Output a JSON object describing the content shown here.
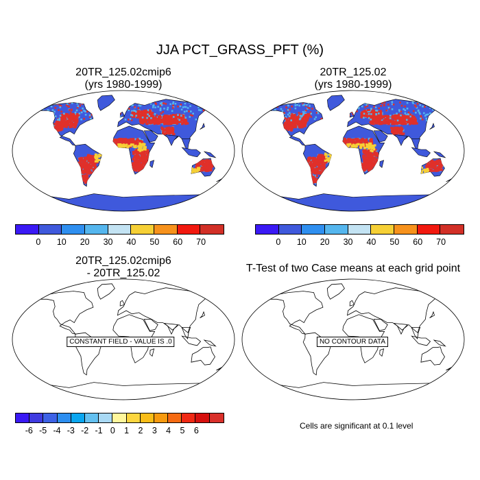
{
  "figure": {
    "title": "JJA PCT_GRASS_PFT (%)"
  },
  "panels": [
    {
      "title": "20TR_125.02cmip6\n(yrs 1980-1999)",
      "kind": "field"
    },
    {
      "title": "20TR_125.02\n(yrs 1980-1999)",
      "kind": "field"
    },
    {
      "title": "20TR_125.02cmip6\n- 20TR_125.02",
      "kind": "empty",
      "message": "CONSTANT FIELD - VALUE IS .0"
    },
    {
      "title": "T-Test of two Case means at each grid point",
      "kind": "empty",
      "message": "NO CONTOUR DATA"
    }
  ],
  "colorbars": {
    "field": {
      "colors": [
        "#3a19f5",
        "#3f59dc",
        "#2f8ff0",
        "#55b6ee",
        "#c3e3f3",
        "#f6d036",
        "#f7921c",
        "#f2190f",
        "#d23027"
      ],
      "labels": [
        "0",
        "10",
        "20",
        "30",
        "40",
        "50",
        "60",
        "70"
      ]
    },
    "diff": {
      "colors": [
        "#3a19f5",
        "#3f3be0",
        "#3d62e6",
        "#2c8ef0",
        "#0aa6f0",
        "#63c0f0",
        "#a9d9f4",
        "#fff79c",
        "#fcd63f",
        "#f9bd18",
        "#f79a0f",
        "#f56a12",
        "#f02914",
        "#d6100e",
        "#d9302a"
      ],
      "labels": [
        "-6",
        "-5",
        "-4",
        "-3",
        "-2",
        "-1",
        "0",
        "1",
        "2",
        "3",
        "4",
        "5",
        "6"
      ]
    }
  },
  "footer_note": "Cells are significant at 0.1 level",
  "map_legend_colors": {
    "land_base": "#3f59dc",
    "ocean": "#ffffff",
    "hot": "#e0302a",
    "mid": "#f6d036",
    "cool": "#55b6ee"
  }
}
